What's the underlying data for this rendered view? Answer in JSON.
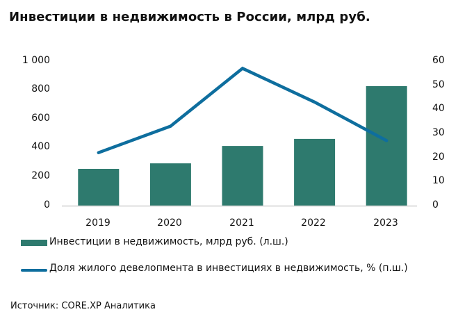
{
  "title": "Инвестиции в недвижимость в России, млрд руб.",
  "left_axis_ticks": [
    "1 000",
    "800",
    "600",
    "400",
    "200",
    "0"
  ],
  "right_axis_ticks": [
    "60",
    "50",
    "40",
    "30",
    "20",
    "10",
    "0"
  ],
  "categories": [
    "2019",
    "2020",
    "2021",
    "2022",
    "2023"
  ],
  "legend": {
    "bar": "Инвестиции в недвижимость, млрд руб. (л.ш.)",
    "line": "Доля жилого девелопмента в инвестициях в недвижимость, % (п.ш.)"
  },
  "source": "Источник: CORE.XP Аналитика",
  "colors": {
    "bar": "#2e7a6e",
    "line": "#0e6e9e",
    "axis": "#d0d0d0"
  },
  "chart_data": {
    "type": "bar",
    "title": "Инвестиции в недвижимость в России, млрд руб.",
    "categories": [
      "2019",
      "2020",
      "2021",
      "2022",
      "2023"
    ],
    "series": [
      {
        "name": "Инвестиции в недвижимость, млрд руб. (л.ш.)",
        "type": "bar",
        "axis": "left",
        "values": [
          255,
          293,
          413,
          462,
          827
        ]
      },
      {
        "name": "Доля жилого девелопмента в инвестициях в недвижимость, % (п.ш.)",
        "type": "line",
        "axis": "right",
        "values": [
          22,
          33,
          57,
          43,
          27
        ]
      }
    ],
    "xlabel": "",
    "ylabel": "",
    "ylim": [
      0,
      1000
    ],
    "y2lim": [
      0,
      60
    ],
    "grid": false,
    "legend_position": "bottom"
  }
}
